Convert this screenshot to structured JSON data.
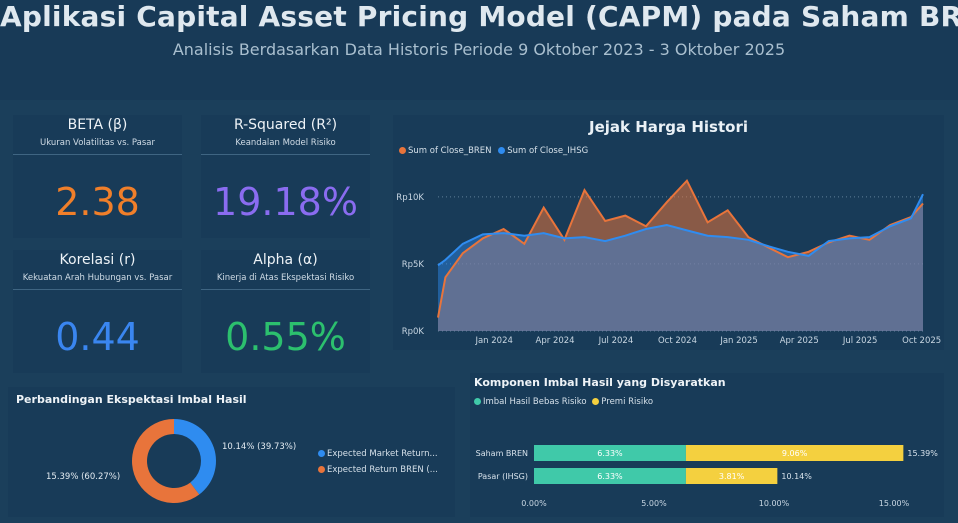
{
  "header": {
    "title": "Aplikasi Capital Asset Pricing Model (CAPM) pada Saham BREN",
    "subtitle": "Analisis Berdasarkan Data Historis Periode 9 Oktober 2023 - 3 Oktober 2025"
  },
  "kpis": {
    "beta": {
      "title": "BETA (β)",
      "subtitle": "Ukuran Volatilitas vs. Pasar",
      "value": "2.38",
      "color": "#f07f2a"
    },
    "rsquared": {
      "title": "R-Squared (R²)",
      "subtitle": "Keandalan Model Risiko",
      "value": "19.18%",
      "color": "#8a6cf0"
    },
    "korelasi": {
      "title": "Korelasi (r)",
      "subtitle": "Kekuatan Arah Hubungan vs. Pasar",
      "value": "0.44",
      "color": "#3a86f0"
    },
    "alpha": {
      "title": "Alpha (α)",
      "subtitle": "Kinerja di Atas Ekspektasi Risiko",
      "value": "0.55%",
      "color": "#2cc06e"
    }
  },
  "price_chart": {
    "title": "Jejak Harga Histori",
    "legend": [
      {
        "label": "Sum of Close_BREN",
        "color": "#e8743b"
      },
      {
        "label": "Sum of Close_IHSG",
        "color": "#2f8cf0"
      }
    ]
  },
  "donut": {
    "title": "Perbandingan Ekspektasi Imbal Hasil",
    "legend": [
      {
        "label": "Expected Market Return...",
        "color": "#2f8cf0"
      },
      {
        "label": "Expected Return BREN (...",
        "color": "#e8743b"
      }
    ]
  },
  "components": {
    "title": "Komponen Imbal Hasil yang Disyaratkan",
    "legend": [
      {
        "label": "Imbal Hasil Bebas Risiko",
        "color": "#40c9a9"
      },
      {
        "label": "Premi Risiko",
        "color": "#f4d03f"
      }
    ]
  },
  "chart_data": [
    {
      "type": "area",
      "title": "Jejak Harga Histori",
      "x_ticks": [
        "Jan 2024",
        "Apr 2024",
        "Jul 2024",
        "Oct 2024",
        "Jan 2025",
        "Apr 2025",
        "Jul 2025",
        "Oct 2025"
      ],
      "y_ticks": [
        "Rp0K",
        "Rp5K",
        "Rp10K"
      ],
      "ylim": [
        0,
        12000
      ],
      "grid": true,
      "series": [
        {
          "name": "Sum of Close_BREN",
          "color": "#e8743b",
          "x": [
            "2023-10-09",
            "2023-10-20",
            "2023-11-15",
            "2023-12-15",
            "2024-01-15",
            "2024-02-15",
            "2024-03-15",
            "2024-04-15",
            "2024-05-15",
            "2024-06-15",
            "2024-07-15",
            "2024-08-15",
            "2024-09-15",
            "2024-10-15",
            "2024-11-15",
            "2024-12-15",
            "2025-01-15",
            "2025-02-15",
            "2025-03-15",
            "2025-04-15",
            "2025-05-15",
            "2025-06-15",
            "2025-07-15",
            "2025-08-15",
            "2025-09-15",
            "2025-10-03"
          ],
          "values": [
            1000,
            4000,
            5800,
            6900,
            7600,
            6500,
            9200,
            6800,
            10500,
            8200,
            8600,
            7800,
            9600,
            11200,
            8100,
            9000,
            7000,
            6200,
            5500,
            5900,
            6600,
            7100,
            6800,
            7900,
            8500,
            9500
          ]
        },
        {
          "name": "Sum of Close_IHSG",
          "color": "#2f8cf0",
          "x": [
            "2023-10-09",
            "2023-10-20",
            "2023-11-15",
            "2023-12-15",
            "2024-01-15",
            "2024-02-15",
            "2024-03-15",
            "2024-04-15",
            "2024-05-15",
            "2024-06-15",
            "2024-07-15",
            "2024-08-15",
            "2024-09-15",
            "2024-10-15",
            "2024-11-15",
            "2024-12-15",
            "2025-01-15",
            "2025-02-15",
            "2025-03-15",
            "2025-04-15",
            "2025-05-15",
            "2025-06-15",
            "2025-07-15",
            "2025-08-15",
            "2025-09-15",
            "2025-10-03"
          ],
          "values": [
            4900,
            5300,
            6500,
            7200,
            7300,
            7100,
            7300,
            6900,
            7000,
            6700,
            7100,
            7600,
            7900,
            7500,
            7100,
            7000,
            6800,
            6300,
            5900,
            5600,
            6700,
            6900,
            7000,
            7800,
            8400,
            10200
          ]
        }
      ]
    },
    {
      "type": "pie",
      "title": "Perbandingan Ekspektasi Imbal Hasil",
      "categories": [
        "Expected Market Return...",
        "Expected Return BREN (..."
      ],
      "values": [
        39.73,
        60.27
      ],
      "data_labels": [
        "10.14% (39.73%)",
        "15.39% (60.27%)"
      ],
      "colors": [
        "#2f8cf0",
        "#e8743b"
      ],
      "legend": "right"
    },
    {
      "type": "bar",
      "orientation": "horizontal",
      "stacked": true,
      "title": "Komponen Imbal Hasil yang Disyaratkan",
      "categories": [
        "Saham BREN",
        "Pasar (IHSG)"
      ],
      "series": [
        {
          "name": "Imbal Hasil Bebas Risiko",
          "values": [
            6.33,
            6.33
          ],
          "labels": [
            "6.33%",
            "6.33%"
          ],
          "color": "#40c9a9"
        },
        {
          "name": "Premi Risiko",
          "values": [
            9.06,
            3.81
          ],
          "labels": [
            "9.06%",
            "3.81%"
          ],
          "color": "#f4d03f"
        }
      ],
      "totals": [
        "15.39%",
        "10.14%"
      ],
      "x_ticks": [
        "0.00%",
        "5.00%",
        "10.00%",
        "15.00%"
      ],
      "xlim": [
        0,
        16.5
      ],
      "legend": "top-left"
    }
  ]
}
